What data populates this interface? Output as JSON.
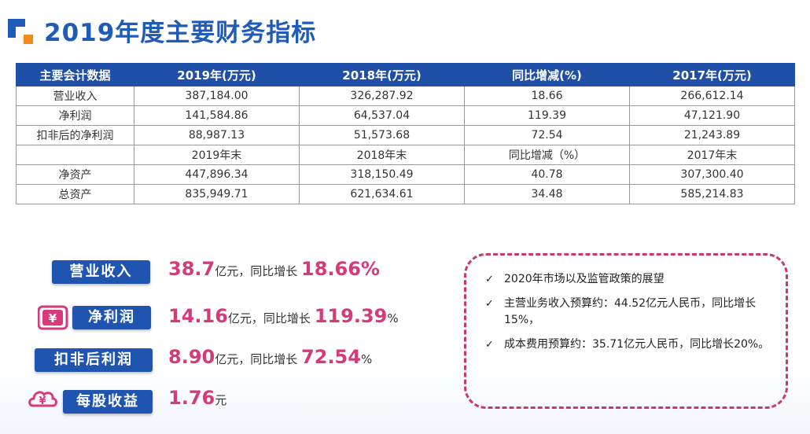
{
  "title": "2019年度主要财务指标",
  "table": {
    "headers": [
      "主要会计数据",
      "2019年(万元)",
      "2018年(万元)",
      "同比增减(%)",
      "2017年(万元)"
    ],
    "rows": [
      [
        "营业收入",
        "387,184.00",
        "326,287.92",
        "18.66",
        "266,612.14"
      ],
      [
        "净利润",
        "141,584.86",
        "64,537.04",
        "119.39",
        "47,121.90"
      ],
      [
        "扣非后的净利润",
        "88,987.13",
        "51,573.68",
        "72.54",
        "21,243.89"
      ],
      [
        "",
        "2019年末",
        "2018年末",
        "同比增减（%）",
        "2017年末"
      ],
      [
        "净资产",
        "447,896.34",
        "318,150.49",
        "40.78",
        "307,300.40"
      ],
      [
        "总资产",
        "835,949.71",
        "621,634.61",
        "34.48",
        "585,214.83"
      ]
    ]
  },
  "metrics": [
    {
      "label": "营业收入",
      "value": "38.7",
      "unit": "亿元，同比增长",
      "growth": "18.66%",
      "suffix": ""
    },
    {
      "label": "净利润",
      "value": "14.16",
      "unit": "亿元，同比增长",
      "growth": "119.39",
      "suffix": "%"
    },
    {
      "label": "扣非后利润",
      "value": "8.90",
      "unit": "亿元，同比增长",
      "growth": "72.54",
      "suffix": "%"
    },
    {
      "label": "每股收益",
      "value": "1.76",
      "unit": "元",
      "growth": "",
      "suffix": ""
    }
  ],
  "outlook": {
    "items": [
      "2020年市场以及监管政策的展望",
      "主营业务收入预算约：44.52亿元人民币，同比增长15%，",
      "成本费用预算约：35.71亿元人民币，同比增长20%。"
    ]
  },
  "icons": {
    "logo": "logo-squares-icon",
    "wallet": "wallet-yuan-icon",
    "cloud": "cloud-yuan-icon",
    "check": "checkmark-icon"
  },
  "colors": {
    "primary": "#1f55b0",
    "accent": "#d63a7a",
    "border": "#c8396f"
  }
}
